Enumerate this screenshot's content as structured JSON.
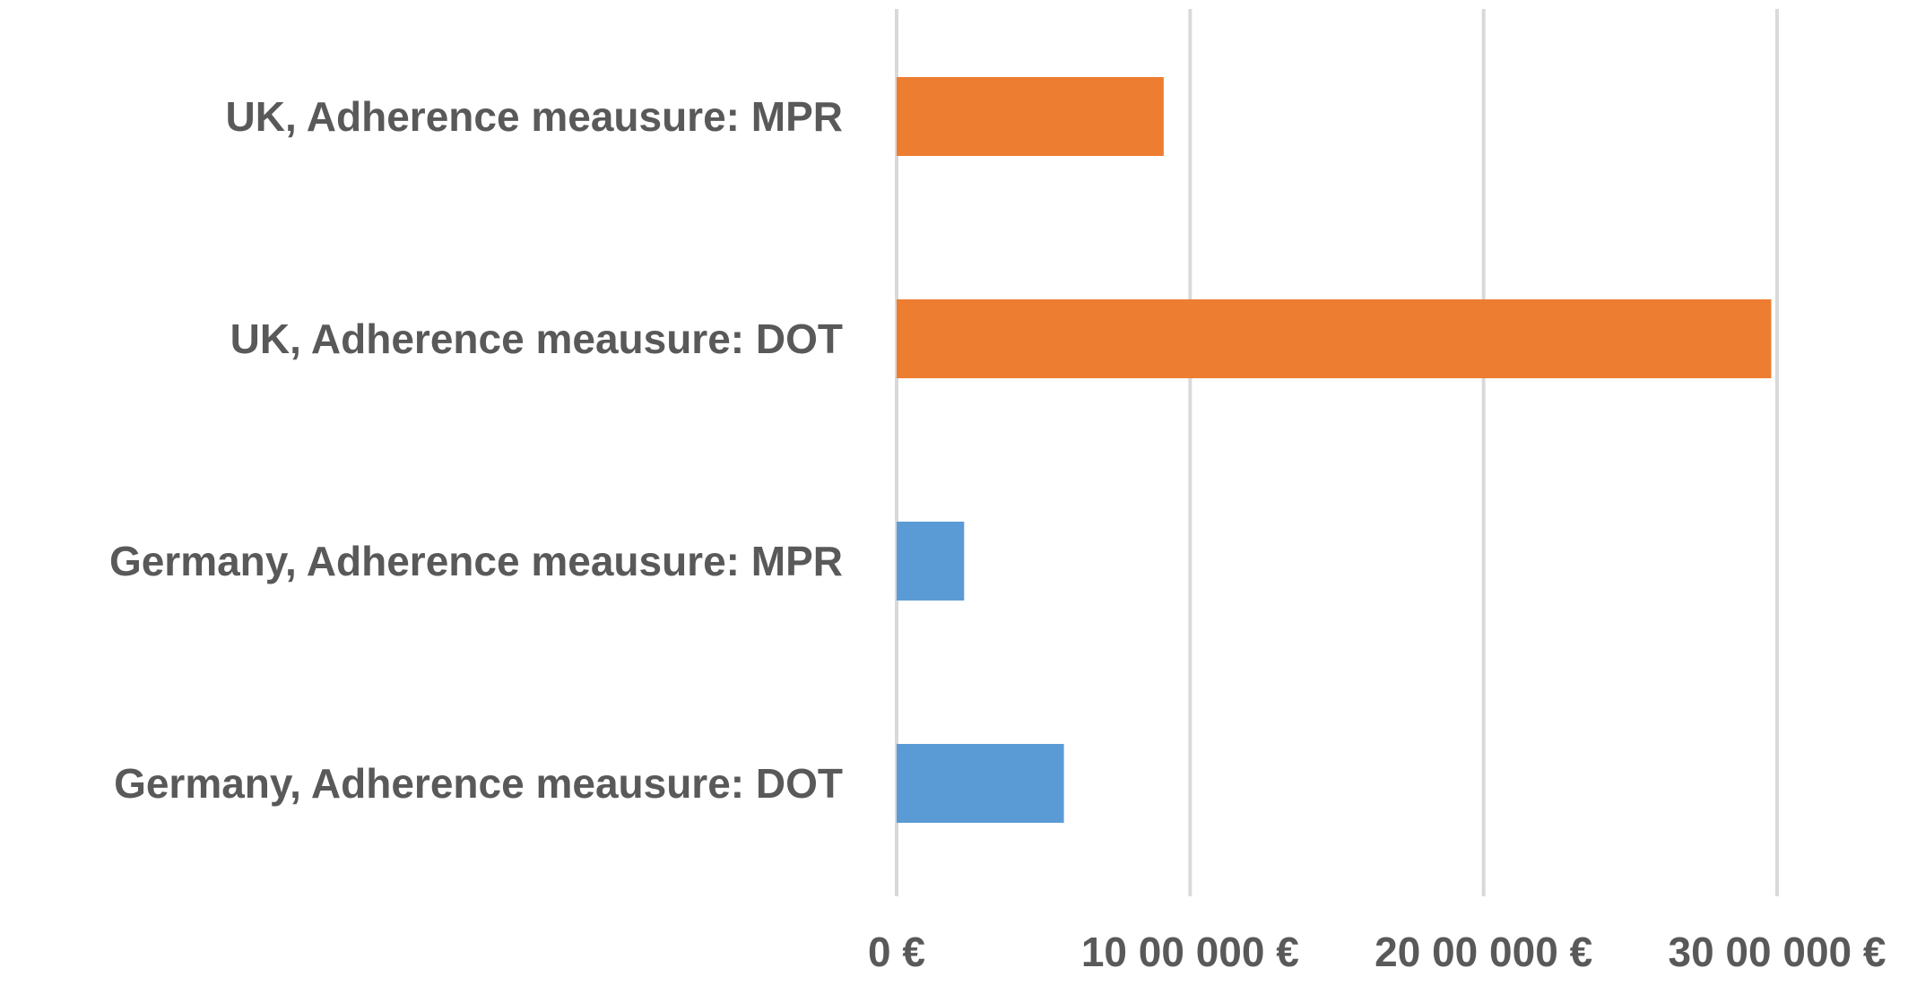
{
  "chart_data": {
    "type": "bar",
    "orientation": "horizontal",
    "categories": [
      "UK, Adherence meausure: MPR",
      "UK, Adherence meausure: DOT",
      "Germany, Adherence meausure: MPR",
      "Germany, Adherence meausure: DOT"
    ],
    "values": [
      910000,
      2980000,
      230000,
      570000
    ],
    "bar_colors": [
      "#ed7d31",
      "#ed7d31",
      "#5b9bd5",
      "#5b9bd5"
    ],
    "xlim": [
      0,
      3000000
    ],
    "xticks": [
      0,
      1000000,
      2000000,
      3000000
    ],
    "xtick_labels": [
      "0 €",
      "10 00 000 €",
      "20 00 000 €",
      "30 00 000 €"
    ],
    "title": "",
    "xlabel": "",
    "ylabel": "",
    "grid": "vertical",
    "legend": "none"
  },
  "colors": {
    "gridline": "#d9d9d9",
    "label_text": "#595959"
  }
}
